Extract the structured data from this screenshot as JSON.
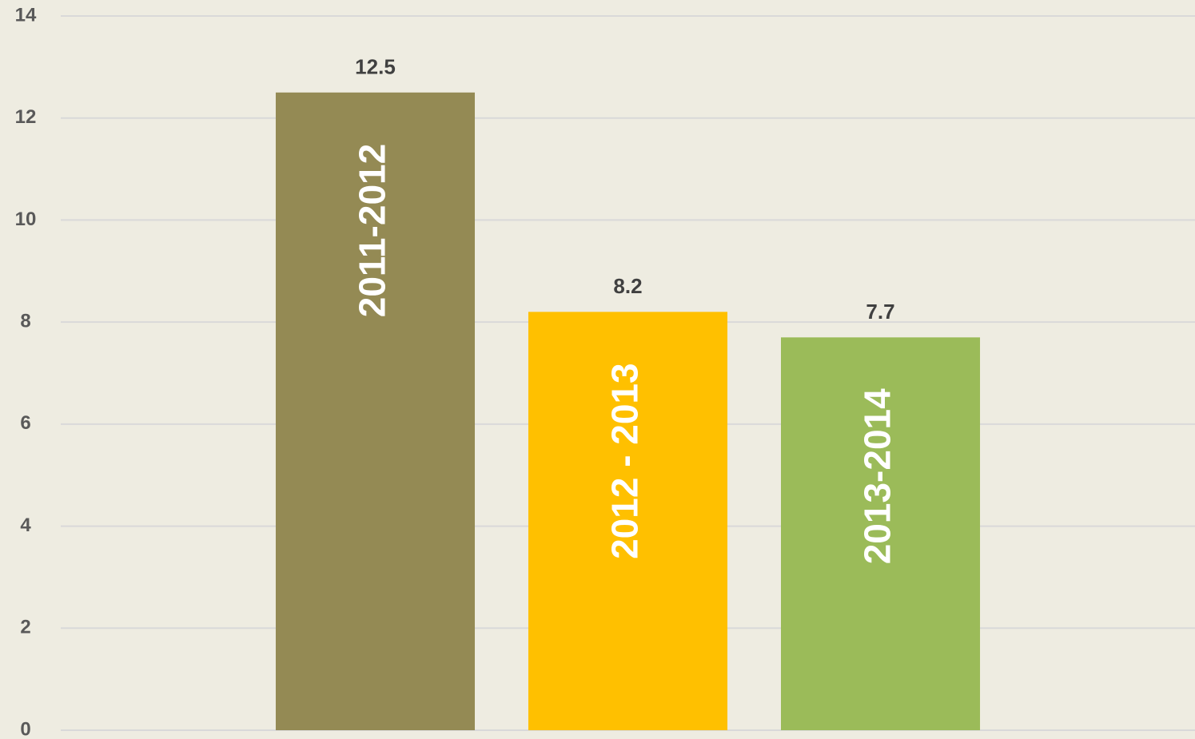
{
  "chart_data": {
    "type": "bar",
    "categories": [
      null
    ],
    "series": [
      {
        "name": "2011-2012",
        "color": "#948a54",
        "values": [
          12.5
        ]
      },
      {
        "name": "2012 - 2013",
        "color": "#ffc000",
        "values": [
          8.2
        ]
      },
      {
        "name": "2013-2014",
        "color": "#9bbb59",
        "values": [
          7.7
        ]
      }
    ],
    "ylim": [
      0,
      14
    ],
    "yticks": [
      0,
      2,
      4,
      6,
      8,
      10,
      12,
      14
    ],
    "grid": true
  }
}
